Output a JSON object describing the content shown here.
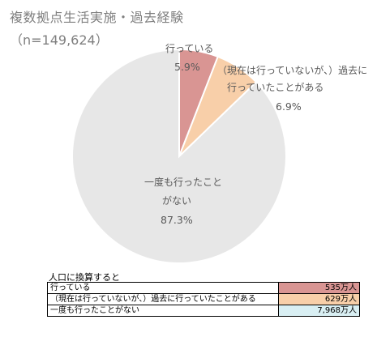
{
  "chart_data": {
    "type": "pie",
    "title": "複数拠点生活実施・過去経験",
    "subtitle": "（n=149,624）",
    "slices": [
      {
        "label": "行っている",
        "value": 5.9,
        "value_label": "5.9%",
        "color": "#d99593"
      },
      {
        "label": "（現在は行っていないが、）過去に行っていたことがある",
        "label_lines": [
          "（現在は行っていないが、）過去に",
          "行っていたことがある"
        ],
        "value": 6.9,
        "value_label": "6.9%",
        "color": "#f8cfa9"
      },
      {
        "label": "一度も行ったことがない",
        "label_lines": [
          "一度も行ったこと",
          "がない"
        ],
        "value": 87.3,
        "value_label": "87.3%",
        "color": "#e7e7e7"
      }
    ],
    "start_angle_deg": 0,
    "direction": "clockwise"
  },
  "conversion": {
    "title": "人口に換算すると",
    "rows": [
      {
        "label": "行っている",
        "value": "535万人",
        "color": "#d99593"
      },
      {
        "label": "（現在は行っていないが、）過去に行っていたことがある",
        "value": "629万人",
        "color": "#f8cfa9"
      },
      {
        "label": "一度も行ったことがない",
        "value": "7,968万人",
        "color": "#d9eff3"
      }
    ]
  }
}
